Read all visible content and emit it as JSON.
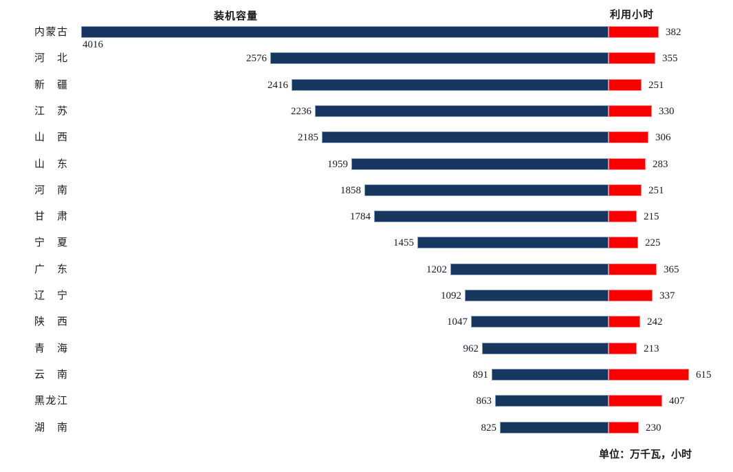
{
  "header": {
    "capacity_label": "装机容量",
    "hours_label": "利用小时"
  },
  "footer": {
    "unit_note": "单位：万千瓦，小时"
  },
  "colors": {
    "capacity_bar": "#17375E",
    "hours_bar": "#FB0000",
    "value_text": "#18182B"
  },
  "chart_data": {
    "type": "bar",
    "layout": "diverging-horizontal-tornado",
    "title": "",
    "xlabel": "",
    "ylabel": "",
    "grid": false,
    "legend_position": "column-headers-top",
    "unit_note": "单位：万千瓦，小时",
    "categories": [
      "内蒙古",
      "河北",
      "新疆",
      "江苏",
      "山西",
      "山东",
      "河南",
      "甘肃",
      "宁夏",
      "广东",
      "辽宁",
      "陕西",
      "青海",
      "云南",
      "黑龙江",
      "湖南"
    ],
    "series": [
      {
        "name": "装机容量",
        "unit": "万千瓦",
        "direction": "left",
        "color": "#17375E",
        "values": [
          4016,
          2576,
          2416,
          2236,
          2185,
          1959,
          1858,
          1784,
          1455,
          1202,
          1092,
          1047,
          962,
          891,
          863,
          825
        ]
      },
      {
        "name": "利用小时",
        "unit": "小时",
        "direction": "right",
        "color": "#FB0000",
        "values": [
          382,
          355,
          251,
          330,
          306,
          283,
          251,
          215,
          225,
          365,
          337,
          242,
          213,
          615,
          407,
          230
        ]
      }
    ],
    "value_labels": "outside-end",
    "first_capacity_label_placement": "below-bar-start",
    "axis": {
      "shared_scale": true,
      "max_value_at_full_width": 4016
    }
  }
}
